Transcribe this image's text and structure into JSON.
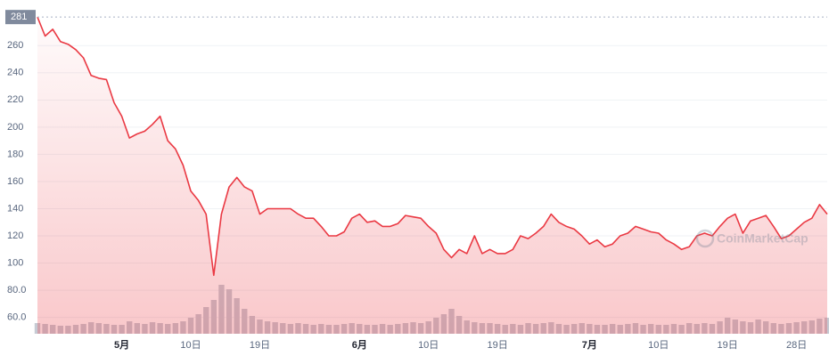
{
  "chart_data": {
    "type": "line",
    "color": "#ea3943",
    "price_tag": 281,
    "watermark": "CoinMarketCap",
    "x": [
      -11,
      -10,
      -9,
      -8,
      -7,
      -6,
      -5,
      -4,
      -3,
      -2,
      -1,
      0,
      1,
      2,
      3,
      4,
      5,
      6,
      7,
      8,
      9,
      10,
      11,
      12,
      13,
      14,
      15,
      16,
      17,
      18,
      19,
      20,
      21,
      22,
      23,
      24,
      25,
      26,
      27,
      28,
      29,
      30,
      31,
      32,
      33,
      34,
      35,
      36,
      37,
      38,
      39,
      40,
      41,
      42,
      43,
      44,
      45,
      46,
      47,
      48,
      49,
      50,
      51,
      52,
      53,
      54,
      55,
      56,
      57,
      58,
      59,
      60,
      61,
      62,
      63,
      64,
      65,
      66,
      67,
      68,
      69,
      70,
      71,
      72,
      73,
      74,
      75,
      76,
      77,
      78,
      79,
      80,
      81,
      82,
      83,
      84,
      85,
      86,
      87,
      88,
      89,
      90,
      91,
      92
    ],
    "values": [
      281,
      267,
      272,
      263,
      261,
      257,
      251,
      238,
      236,
      235,
      218,
      208,
      192,
      195,
      197,
      202,
      208,
      190,
      184,
      172,
      153,
      146,
      136,
      91,
      136,
      156,
      163,
      156,
      153,
      136,
      140,
      140,
      140,
      140,
      136,
      133,
      133,
      127,
      120,
      120,
      123,
      133,
      136,
      130,
      131,
      127,
      127,
      129,
      135,
      134,
      133,
      127,
      122,
      110,
      104,
      110,
      107,
      120,
      107,
      110,
      107,
      107,
      110,
      120,
      118,
      122,
      127,
      136,
      130,
      127,
      125,
      120,
      114,
      117,
      112,
      114,
      120,
      122,
      127,
      125,
      123,
      122,
      117,
      114,
      110,
      112,
      120,
      122,
      120,
      127,
      133,
      136,
      122,
      131,
      133,
      135,
      127,
      118,
      120,
      125,
      130,
      133,
      143,
      136
    ],
    "volume": {
      "color": "#c6cbd4",
      "values": [
        12,
        11,
        10,
        9,
        9,
        10,
        11,
        13,
        12,
        11,
        10,
        10,
        14,
        12,
        11,
        13,
        12,
        11,
        12,
        14,
        18,
        22,
        30,
        38,
        55,
        50,
        40,
        28,
        20,
        16,
        14,
        13,
        12,
        11,
        12,
        11,
        10,
        11,
        10,
        10,
        11,
        12,
        11,
        10,
        10,
        11,
        10,
        11,
        12,
        13,
        12,
        14,
        18,
        22,
        28,
        20,
        15,
        13,
        12,
        12,
        11,
        10,
        11,
        10,
        12,
        11,
        12,
        13,
        11,
        10,
        11,
        12,
        11,
        10,
        10,
        11,
        10,
        11,
        12,
        10,
        11,
        10,
        10,
        11,
        10,
        12,
        11,
        12,
        11,
        14,
        18,
        16,
        14,
        13,
        16,
        14,
        12,
        11,
        12,
        13,
        14,
        15,
        17,
        18
      ]
    },
    "xlim": [
      -11,
      92
    ],
    "xticks": [
      {
        "value": 0,
        "label": "5月"
      },
      {
        "value": 9,
        "label": "10日"
      },
      {
        "value": 18,
        "label": "19日"
      },
      {
        "value": 31,
        "label": "6月"
      },
      {
        "value": 40,
        "label": "10日"
      },
      {
        "value": 49,
        "label": "19日"
      },
      {
        "value": 61,
        "label": "7月"
      },
      {
        "value": 70,
        "label": "10日"
      },
      {
        "value": 79,
        "label": "19日"
      },
      {
        "value": 88,
        "label": "28日"
      }
    ],
    "ylim": [
      48,
      287
    ],
    "yticks": [
      {
        "value": 60,
        "label": "60.0"
      },
      {
        "value": 80,
        "label": "80.0"
      },
      100,
      120,
      140,
      160,
      180,
      200,
      220,
      240,
      260
    ],
    "grid": true
  }
}
